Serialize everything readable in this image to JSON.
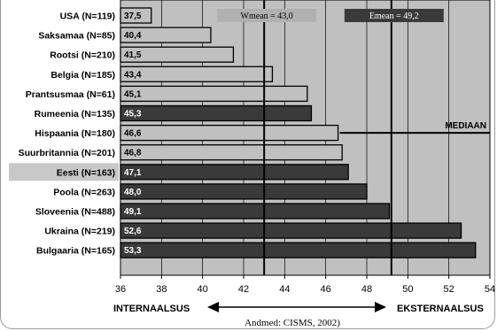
{
  "chart_data": {
    "type": "bar",
    "orientation": "horizontal",
    "categories": [
      "USA (N=119)",
      "Saksamaa (N=85)",
      "Rootsi (N=210)",
      "Belgia (N=185)",
      "Prantsusmaa (N=61)",
      "Rumeenia (N=135)",
      "Hispaania (N=180)",
      "Suurbritannia (N=201)",
      "Eesti (N=163)",
      "Poola (N=263)",
      "Sloveenia (N=488)",
      "Ukraina (N=219)",
      "Bulgaaria (N=165)"
    ],
    "values": [
      37.5,
      40.4,
      41.5,
      43.4,
      45.1,
      45.3,
      46.6,
      46.8,
      47.1,
      48.0,
      49.1,
      52.6,
      53.3
    ],
    "value_labels": [
      "37,5",
      "40,4",
      "41,5",
      "43,4",
      "45,1",
      "45,3",
      "46,6",
      "46,8",
      "47,1",
      "48,0",
      "49,1",
      "52,6",
      "53,3"
    ],
    "bar_group": [
      "w",
      "w",
      "w",
      "w",
      "w",
      "e",
      "w",
      "w",
      "e",
      "e",
      "e",
      "e",
      "e"
    ],
    "highlighted_category": "Eesti (N=163)",
    "xlim": [
      36,
      54
    ],
    "xticks": [
      36,
      38,
      40,
      42,
      44,
      46,
      48,
      50,
      52,
      54
    ],
    "grid": true,
    "reference_lines": [
      {
        "value": 43.0,
        "label": "Wmean = 43,0"
      },
      {
        "value": 49.2,
        "label": "Emean = 49,2"
      }
    ],
    "median_label": "MEDIAAN",
    "median_row": "Hispaania (N=180)",
    "left_axis_label": "INTERNAALSUS",
    "right_axis_label": "EKSTERNAALSUS",
    "source": "Andmed: CISMS, 2002)",
    "colors": {
      "plot_bg": "#c0c0c0",
      "group_w": "#c0c0c0",
      "group_e": "#3a3a3a",
      "highlight_bg": "#c8c8c8",
      "text_on_dark": "#ffffff",
      "text_on_light": "#000000"
    }
  }
}
